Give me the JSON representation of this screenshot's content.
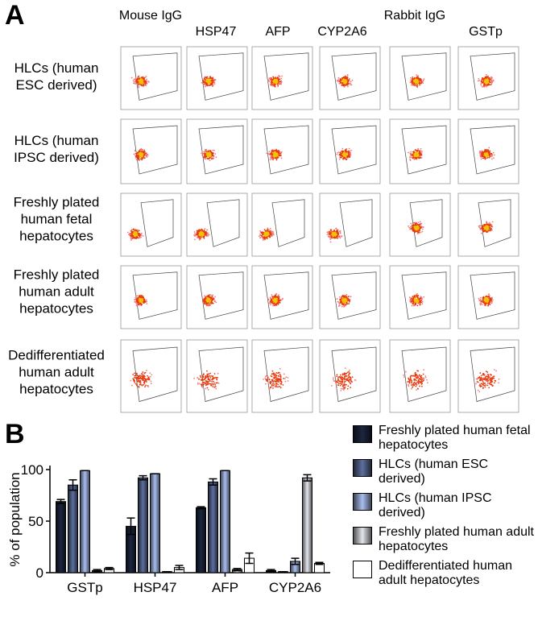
{
  "panel_labels": [
    "A",
    "B"
  ],
  "panel_a": {
    "columns": [
      "Mouse IgG",
      "HSP47",
      "AFP",
      "CYP2A6",
      "Rabbit IgG",
      "GSTp"
    ],
    "rows": [
      "HLCs (human ESC derived)",
      "HLCs (human IPSC derived)",
      "Freshly plated human fetal hepatocytes",
      "Freshly plated human adult hepatocytes",
      "Dedifferentiated human adult hepatocytes"
    ]
  },
  "chart_data": {
    "type": "bar",
    "y_label": "% of population",
    "categories": [
      "GSTp",
      "HSP47",
      "AFP",
      "CYP2A6"
    ],
    "series": [
      {
        "name": "Freshly plated human fetal hepatocytes",
        "color": "#1c2640",
        "values": [
          69,
          45,
          63,
          2
        ],
        "errors": [
          2,
          8,
          1,
          1
        ]
      },
      {
        "name": "HLCs (human ESC derived)",
        "color": "#5d6f9e",
        "values": [
          85,
          92,
          88,
          1
        ],
        "errors": [
          5,
          2,
          3,
          0
        ]
      },
      {
        "name": "HLCs (human IPSC derived)",
        "color": "#a9bdee",
        "values": [
          99,
          96,
          99,
          11
        ],
        "errors": [
          0,
          0,
          0,
          3
        ]
      },
      {
        "name": "Freshly plated human adult hepatocytes",
        "color": "#e4e6ee",
        "values": [
          2,
          1,
          3,
          92
        ],
        "errors": [
          1,
          0,
          1,
          3
        ]
      },
      {
        "name": "Dedifferentiated human adult hepatocytes",
        "color": "#ffffff",
        "values": [
          4,
          5,
          14,
          9
        ],
        "errors": [
          1,
          2,
          5,
          1
        ]
      }
    ],
    "ylim": [
      0,
      100
    ],
    "yticks": [
      0,
      50,
      100
    ]
  }
}
